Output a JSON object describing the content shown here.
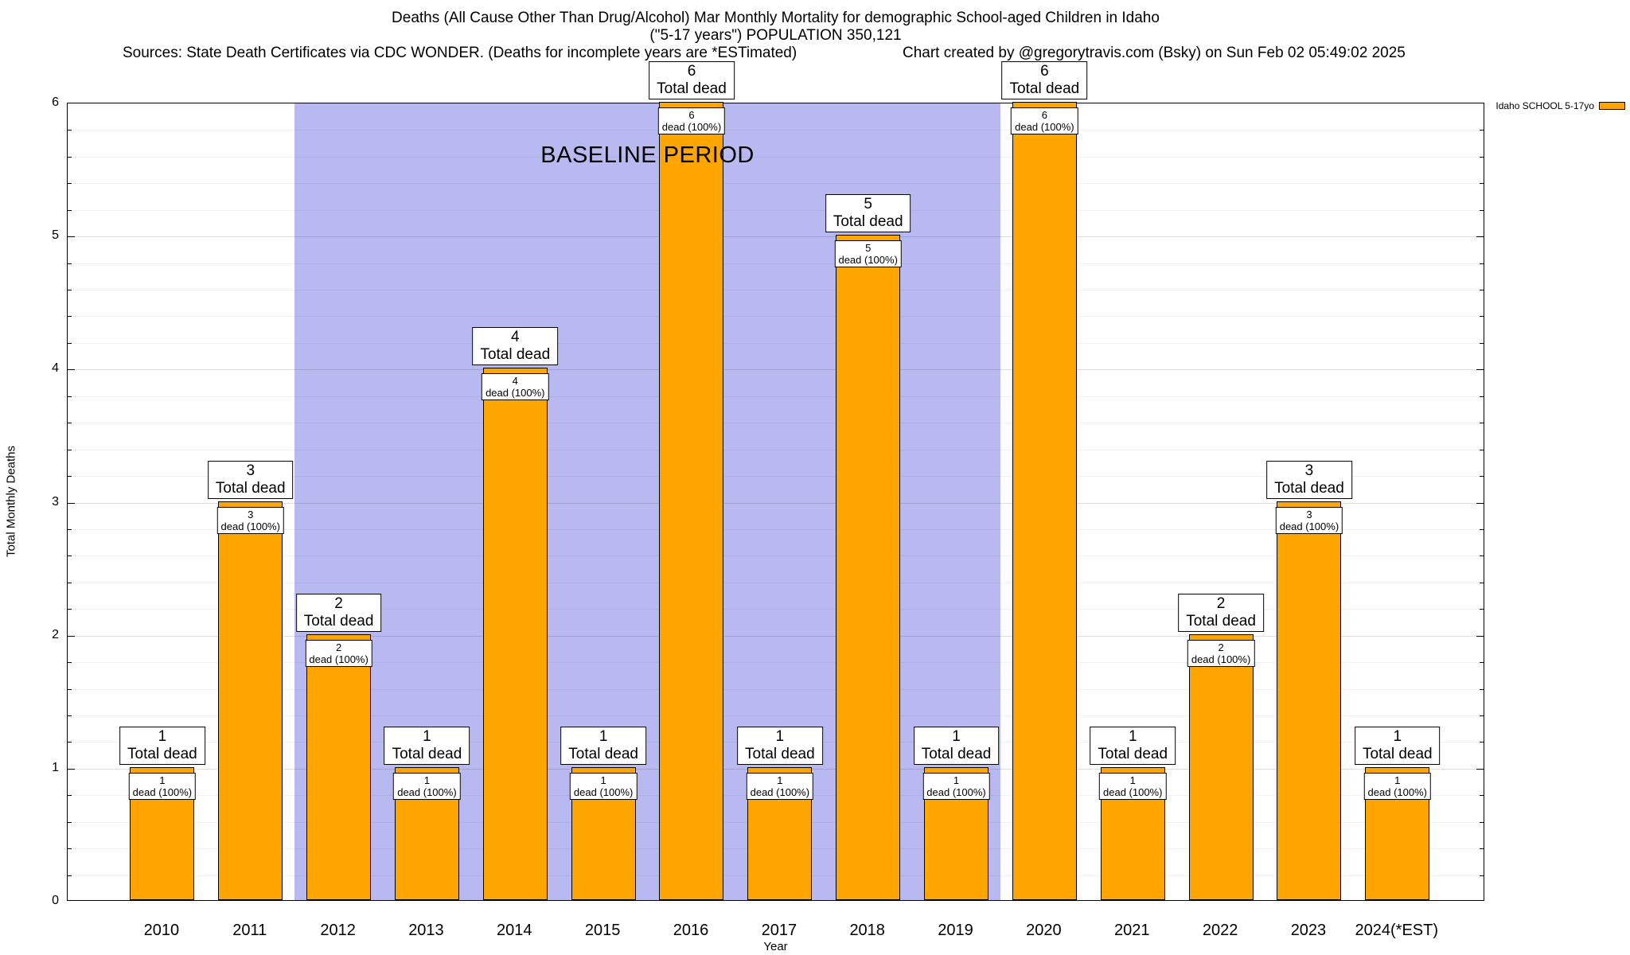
{
  "header": {
    "title_line1": "Deaths (All Cause Other Than Drug/Alcohol) Mar Monthly Mortality for demographic School-aged Children in Idaho",
    "title_line2": "(\"5-17 years\") POPULATION 350,121",
    "sources": "Sources: State Death Certificates via CDC WONDER. (Deaths for incomplete years are *ESTimated)",
    "credit": "Chart created by @gregorytravis.com (Bsky) on Sun Feb 02 05:49:02 2025"
  },
  "chart_data": {
    "type": "bar",
    "title": "Deaths (All Cause Other Than Drug/Alcohol) Mar Monthly Mortality for demographic School-aged Children in Idaho (\"5-17 years\") POPULATION 350,121",
    "categories": [
      "2010",
      "2011",
      "2012",
      "2013",
      "2014",
      "2015",
      "2016",
      "2017",
      "2018",
      "2019",
      "2020",
      "2021",
      "2022",
      "2023",
      "2024(*EST)"
    ],
    "values": [
      1,
      3,
      2,
      1,
      4,
      1,
      6,
      1,
      5,
      1,
      6,
      1,
      2,
      3,
      1
    ],
    "xlabel": "Year",
    "ylabel": "Total Monthly Deaths",
    "ylim": [
      0,
      6
    ],
    "yticks": [
      0,
      1,
      2,
      3,
      4,
      5,
      6
    ],
    "grid": "minor horizontal every 0.2, major every 1",
    "bar_color": "#FFA500",
    "baseline_region": {
      "label": "BASELINE PERIOD",
      "from_category": "2012",
      "to_category": "2019",
      "color": "#b9b9f2"
    },
    "legend": {
      "label": "Idaho SCHOOL 5-17yo",
      "swatch_color": "#FFA500",
      "position": "top-right"
    },
    "annotations": {
      "above_bar_line2": "Total dead",
      "inside_bar_line2": "dead (100%)"
    }
  }
}
